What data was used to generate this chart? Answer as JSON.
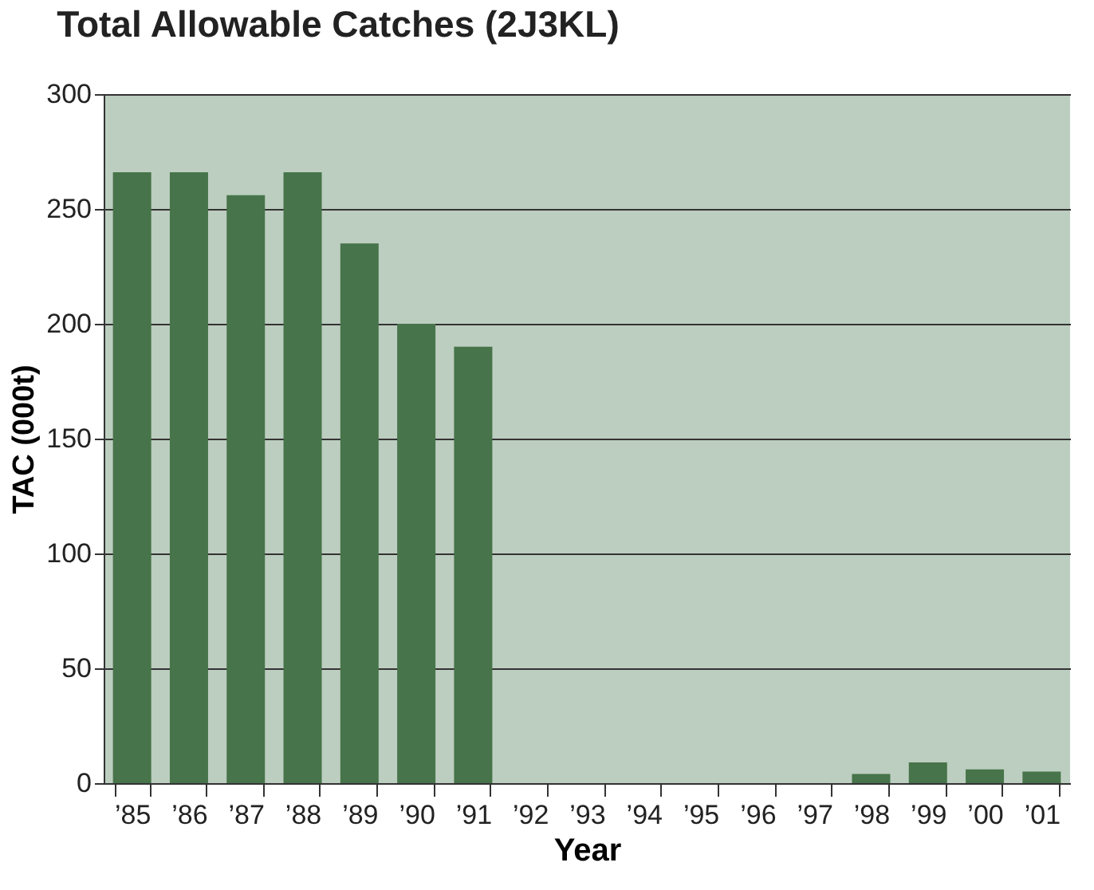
{
  "chart_data": {
    "type": "bar",
    "title": "Total Allowable Catches (2J3KL)",
    "xlabel": "Year",
    "ylabel": "TAC (000t)",
    "categories": [
      "’85",
      "’86",
      "’87",
      "’88",
      "’89",
      "’90",
      "’91",
      "’92",
      "’93",
      "’94",
      "’95",
      "’96",
      "’97",
      "’98",
      "’99",
      "’00",
      "’01"
    ],
    "values": [
      266,
      266,
      256,
      266,
      235,
      200,
      190,
      0,
      0,
      0,
      0,
      0,
      0,
      4,
      9,
      6,
      5
    ],
    "color": "#47744a",
    "ylim": [
      0,
      300
    ],
    "yticks": [
      0,
      50,
      100,
      150,
      200,
      250,
      300
    ],
    "grid": "y"
  }
}
